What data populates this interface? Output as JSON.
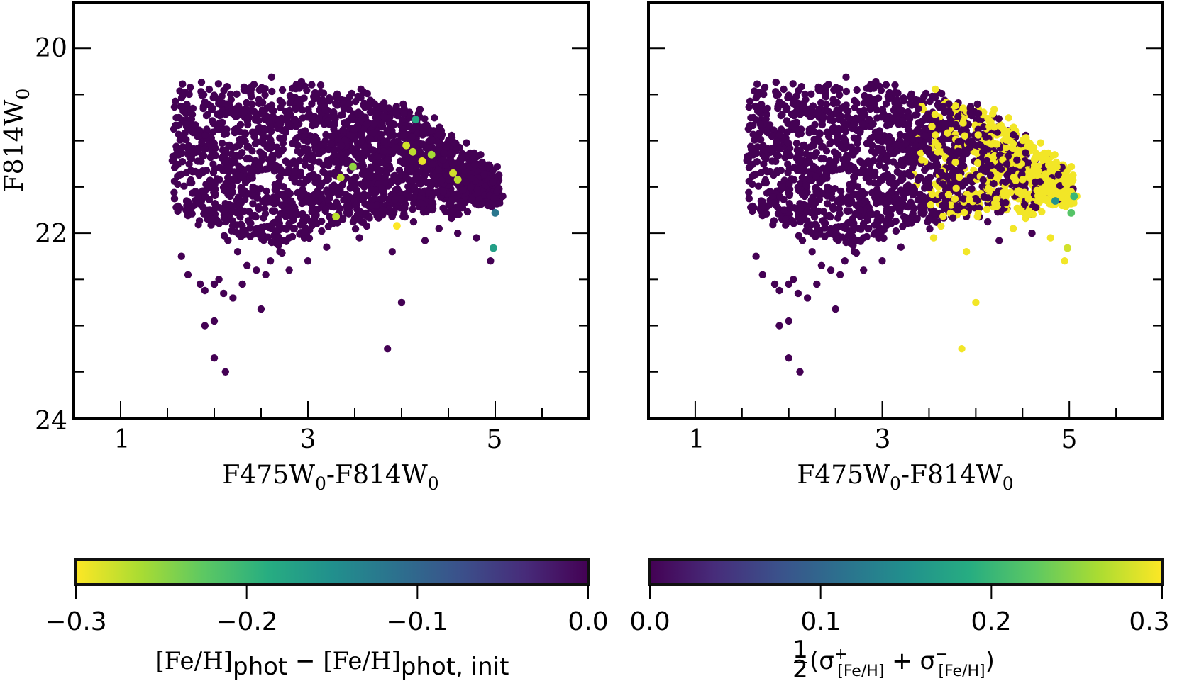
{
  "chart_data": [
    {
      "type": "scatter",
      "panel": "left",
      "xlabel_parts": [
        "F475W",
        "0",
        "-F814W",
        "0"
      ],
      "ylabel_parts": [
        "F814W",
        "0"
      ],
      "xlim": [
        0.5,
        6.0
      ],
      "ylim": [
        24.0,
        19.5
      ],
      "y_inverted": true,
      "xticks": [
        1,
        3,
        5
      ],
      "xtick_labels": [
        "1",
        "3",
        "5"
      ],
      "yticks": [
        20,
        22,
        24
      ],
      "ytick_labels": [
        "20",
        "22",
        "24"
      ],
      "colormap": "viridis",
      "color_range": [
        -0.3,
        0.0
      ],
      "colormap_reversed": true,
      "colorbar": {
        "ticks": [
          -0.3,
          -0.2,
          -0.1,
          0.0
        ],
        "tick_labels": [
          "−0.3",
          "−0.2",
          "−0.1",
          "0.0"
        ],
        "label_parts": [
          "[Fe/H]",
          "phot",
          " − [Fe/H]",
          "phot, init"
        ]
      },
      "highlight_points": [
        {
          "x": 4.15,
          "y": 20.77,
          "c": -0.18
        },
        {
          "x": 4.05,
          "y": 21.05,
          "c": -0.28
        },
        {
          "x": 4.12,
          "y": 21.12,
          "c": -0.27
        },
        {
          "x": 4.22,
          "y": 21.22,
          "c": -0.29
        },
        {
          "x": 4.32,
          "y": 21.15,
          "c": -0.26
        },
        {
          "x": 3.35,
          "y": 21.4,
          "c": -0.27
        },
        {
          "x": 3.48,
          "y": 21.28,
          "c": -0.25
        },
        {
          "x": 4.55,
          "y": 21.35,
          "c": -0.28
        },
        {
          "x": 4.6,
          "y": 21.42,
          "c": -0.27
        },
        {
          "x": 3.3,
          "y": 21.82,
          "c": -0.27
        },
        {
          "x": 3.95,
          "y": 21.92,
          "c": -0.3
        },
        {
          "x": 5.0,
          "y": 21.78,
          "c": -0.12
        },
        {
          "x": 4.98,
          "y": 22.16,
          "c": -0.17
        }
      ]
    },
    {
      "type": "scatter",
      "panel": "right",
      "xlabel_parts": [
        "F475W",
        "0",
        "-F814W",
        "0"
      ],
      "xlim": [
        0.5,
        6.0
      ],
      "ylim": [
        24.0,
        19.5
      ],
      "y_inverted": true,
      "xticks": [
        1,
        3,
        5
      ],
      "xtick_labels": [
        "1",
        "3",
        "5"
      ],
      "yticks": [
        20,
        22,
        24
      ],
      "colormap": "viridis",
      "color_range": [
        0.0,
        0.3
      ],
      "colormap_reversed": false,
      "colorbar": {
        "ticks": [
          0.0,
          0.1,
          0.2,
          0.3
        ],
        "tick_labels": [
          "0.0",
          "0.1",
          "0.2",
          "0.3"
        ],
        "label_parts": [
          "1",
          "2",
          "(σ",
          "+",
          "[Fe/H]",
          " + σ",
          "−",
          "[Fe/H]",
          ")"
        ]
      },
      "highlight_points": [
        {
          "x": 5.05,
          "y": 21.6,
          "c": 0.2
        },
        {
          "x": 4.85,
          "y": 21.65,
          "c": 0.15
        },
        {
          "x": 5.02,
          "y": 21.78,
          "c": 0.22
        },
        {
          "x": 4.98,
          "y": 22.16,
          "c": 0.28
        }
      ]
    }
  ],
  "notes": "Main population of ~2000 stars spans x 1.5–5.1, y 20.4–23.5, plotted in the low colormap value (dark purple) on the left and, for red stars (x > 3.3), in high values (yellow) on the right."
}
